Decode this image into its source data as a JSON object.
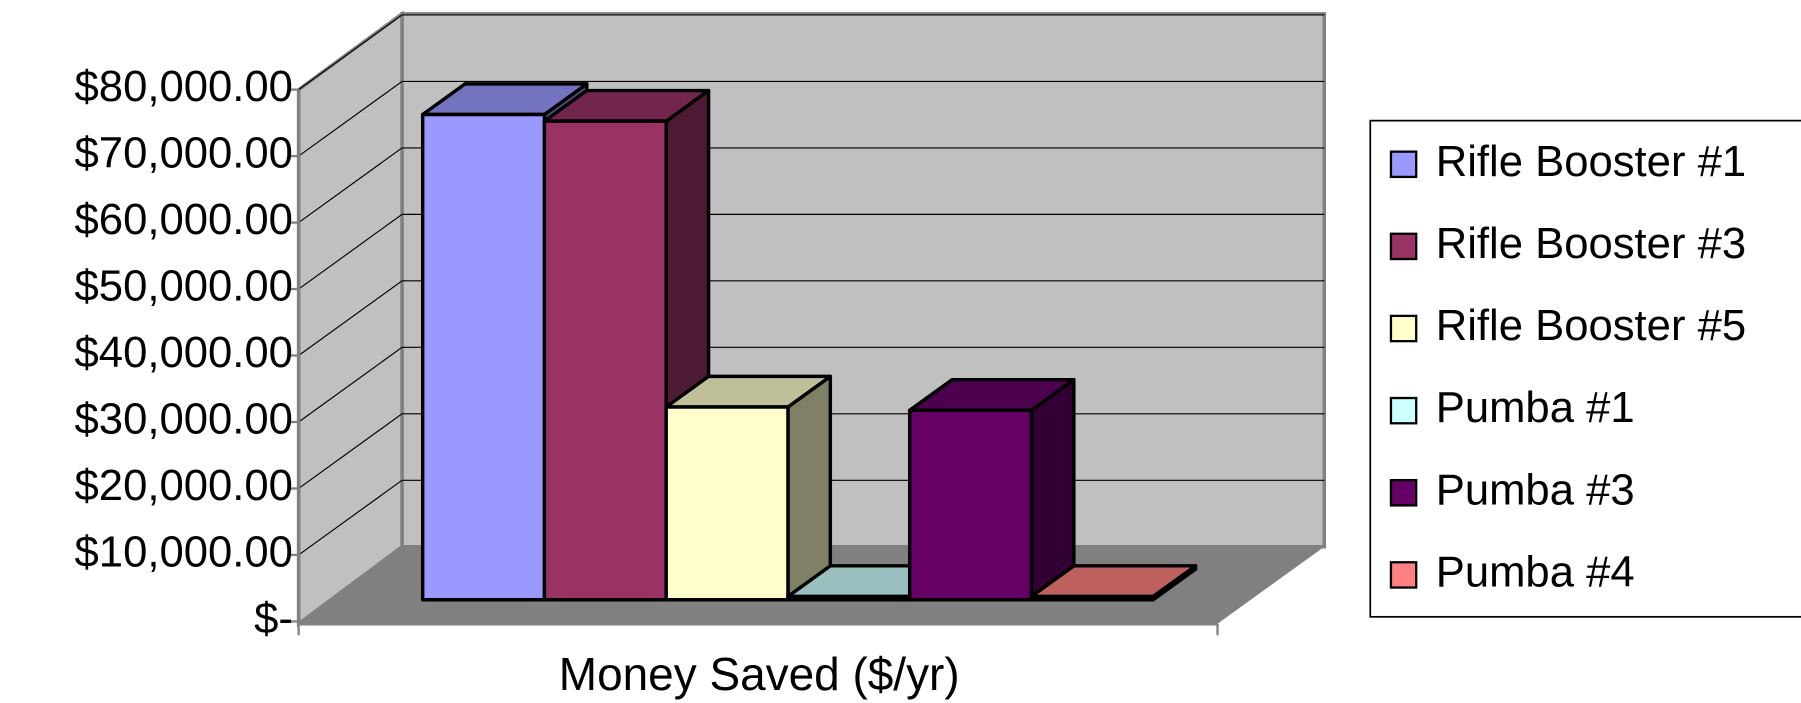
{
  "chart_data": {
    "type": "bar3d",
    "categories": [
      "Money Saved ($/yr)"
    ],
    "series": [
      {
        "name": "Rifle Booster #1",
        "color": "#9999FF",
        "values": [
          73000
        ]
      },
      {
        "name": "Rifle Booster #3",
        "color": "#993366",
        "values": [
          72000
        ]
      },
      {
        "name": "Rifle Booster #5",
        "color": "#FFFFCC",
        "values": [
          29000
        ]
      },
      {
        "name": "Pumba #1",
        "color": "#CCFFFF",
        "values": [
          500
        ]
      },
      {
        "name": "Pumba #3",
        "color": "#660066",
        "values": [
          28500
        ]
      },
      {
        "name": "Pumba #4",
        "color": "#FF8080",
        "values": [
          500
        ]
      }
    ],
    "ylim": [
      0,
      80000
    ],
    "yticks": [
      {
        "value": 0,
        "label": "$-"
      },
      {
        "value": 10000,
        "label": "$10,000.00"
      },
      {
        "value": 20000,
        "label": "$20,000.00"
      },
      {
        "value": 30000,
        "label": "$30,000.00"
      },
      {
        "value": 40000,
        "label": "$40,000.00"
      },
      {
        "value": 50000,
        "label": "$50,000.00"
      },
      {
        "value": 60000,
        "label": "$60,000.00"
      },
      {
        "value": 70000,
        "label": "$70,000.00"
      },
      {
        "value": 80000,
        "label": "$80,000.00"
      }
    ],
    "grid": true,
    "legend": "right"
  }
}
